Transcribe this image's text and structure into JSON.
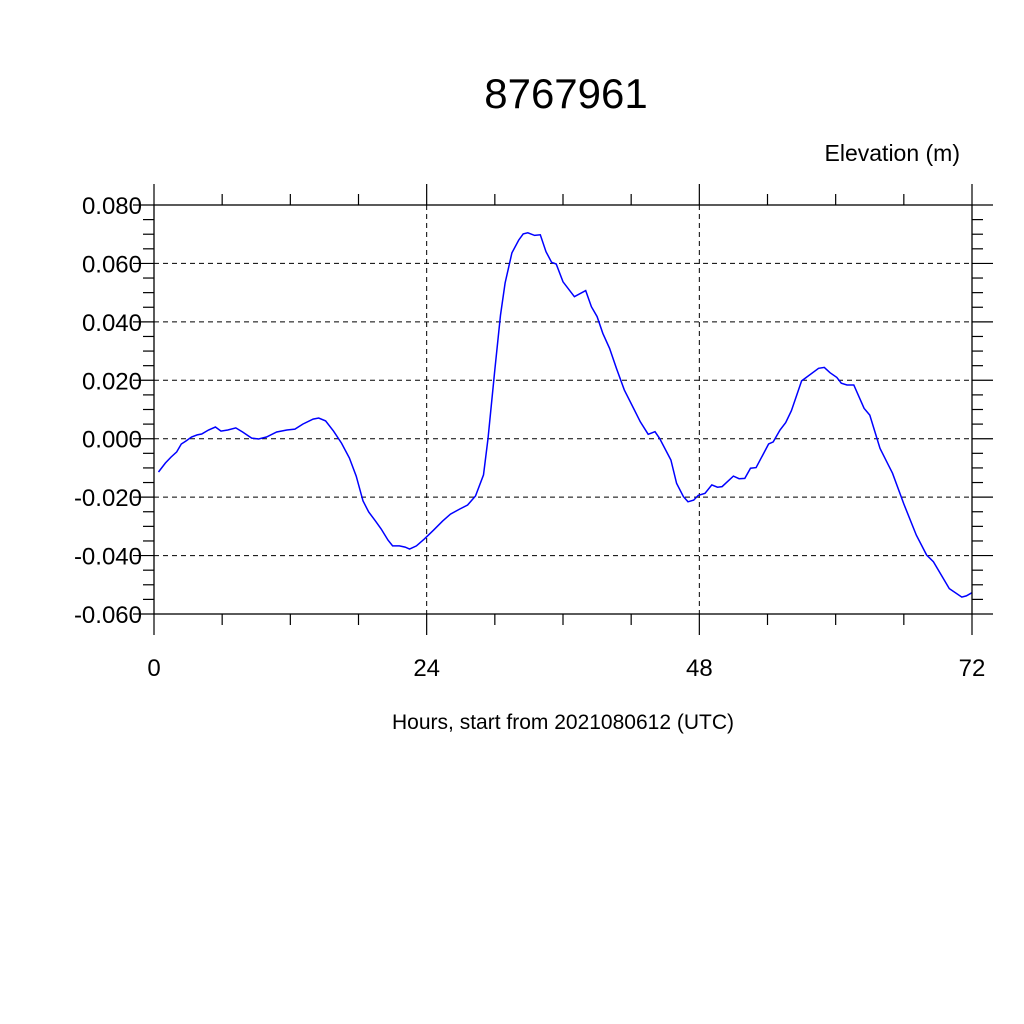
{
  "chart_data": {
    "type": "line",
    "title": "8767961",
    "ylabel": "Elevation (m)",
    "xlabel": "Hours, start from 2021080612 (UTC)",
    "xlim": [
      0,
      72
    ],
    "ylim": [
      -0.06,
      0.08
    ],
    "x_major_ticks": [
      0,
      24,
      48,
      72
    ],
    "x_tick_labels": [
      "0",
      "24",
      "48",
      "72"
    ],
    "x_minor_step": 6,
    "y_major_ticks": [
      0.08,
      0.06,
      0.04,
      0.02,
      0.0,
      -0.02,
      -0.04,
      -0.06
    ],
    "y_tick_labels": [
      "0.080",
      "0.060",
      "0.040",
      "0.020",
      "0.000",
      "-0.020",
      "-0.040",
      "-0.060"
    ],
    "y_minor_step": 0.005,
    "grid": true,
    "line_color": "#0000ff",
    "series": [
      {
        "x": [
          0.4,
          1.0,
          1.5,
          2.0,
          2.4,
          2.8,
          3.3,
          3.8,
          4.2,
          4.8,
          5.4,
          5.9,
          6.5,
          7.2,
          7.8,
          8.6,
          9.2,
          9.9,
          10.8,
          11.7,
          12.4,
          13.1,
          14.0,
          14.5,
          15.1,
          15.8,
          16.5,
          17.2,
          17.8,
          18.4,
          18.9,
          19.5,
          20.0,
          20.6,
          21.0,
          21.6,
          22.1,
          22.5,
          23.1,
          23.8,
          24.6,
          25.4,
          26.1,
          26.9,
          27.6,
          28.3,
          29.0,
          29.4,
          30.0,
          30.5,
          30.9,
          31.5,
          32.1,
          32.5,
          32.9,
          33.5,
          34.0,
          34.5,
          35.0,
          35.4,
          36.0,
          37.0,
          38.0,
          38.5,
          39.0,
          39.5,
          40.1,
          40.7,
          41.4,
          42.8,
          43.5,
          44.1,
          44.5,
          45.5,
          46.0,
          46.6,
          47.0,
          47.5,
          47.9,
          48.5,
          49.1,
          49.6,
          50.0,
          51.0,
          51.5,
          52.0,
          52.5,
          53.0,
          54.1,
          54.5,
          55.1,
          55.6,
          56.1,
          57.0,
          58.5,
          59.0,
          59.5,
          60.1,
          60.5,
          61.0,
          61.6,
          62.5,
          63.0,
          63.9,
          65.0,
          66.0,
          67.1,
          68.0,
          68.6,
          70.0,
          71.1,
          71.5,
          72.0
        ],
        "y": [
          -0.0114,
          -0.0083,
          -0.0063,
          -0.0045,
          -0.0018,
          -0.0008,
          0.0006,
          0.0013,
          0.0016,
          0.003,
          0.004,
          0.0026,
          0.003,
          0.0037,
          0.0023,
          0.0002,
          -0.0001,
          0.0006,
          0.0023,
          0.003,
          0.0033,
          0.005,
          0.0067,
          0.0071,
          0.0061,
          0.0026,
          -0.0015,
          -0.0066,
          -0.0128,
          -0.0213,
          -0.0251,
          -0.0282,
          -0.0309,
          -0.0347,
          -0.0367,
          -0.0367,
          -0.0371,
          -0.0378,
          -0.0367,
          -0.0343,
          -0.0313,
          -0.0282,
          -0.0258,
          -0.0241,
          -0.0227,
          -0.0196,
          -0.0124,
          0.0,
          0.0235,
          0.0423,
          0.0533,
          0.0636,
          0.068,
          0.0701,
          0.0705,
          0.0696,
          0.0698,
          0.064,
          0.0604,
          0.0598,
          0.0537,
          0.0486,
          0.0507,
          0.0452,
          0.0418,
          0.0361,
          0.0309,
          0.0241,
          0.0167,
          0.0058,
          0.0015,
          0.0024,
          0.0001,
          -0.0073,
          -0.0153,
          -0.0198,
          -0.0216,
          -0.021,
          -0.0194,
          -0.0187,
          -0.0158,
          -0.0166,
          -0.0164,
          -0.0128,
          -0.0137,
          -0.0136,
          -0.0101,
          -0.0099,
          -0.0018,
          -0.0011,
          0.003,
          0.0055,
          0.0096,
          0.0198,
          0.0241,
          0.0244,
          0.0226,
          0.021,
          0.019,
          0.0184,
          0.0184,
          0.0104,
          0.0081,
          -0.0033,
          -0.0118,
          -0.0223,
          -0.033,
          -0.0398,
          -0.0421,
          -0.0513,
          -0.0542,
          -0.0538,
          -0.0527
        ]
      }
    ]
  }
}
